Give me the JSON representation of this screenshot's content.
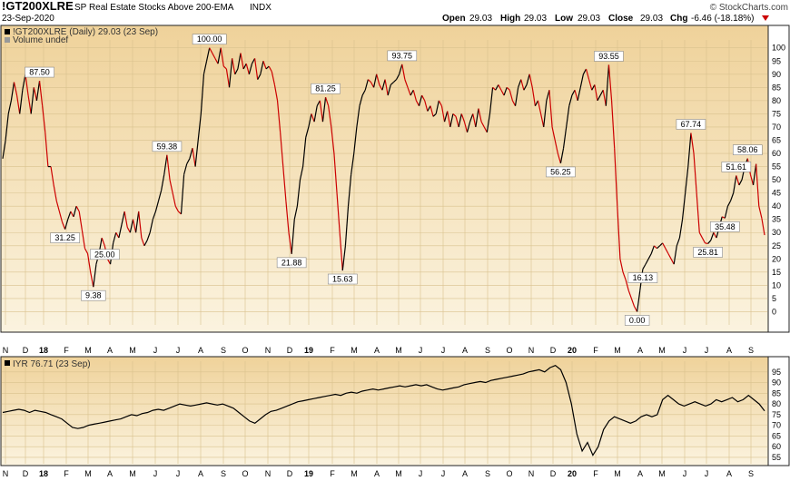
{
  "header": {
    "symbol": "!GT200XLRE",
    "description": "SP Real Estate Stocks Above 200-EMA",
    "exchange": "INDX",
    "date": "23-Sep-2020",
    "credit": "© StockCharts.com",
    "open_label": "Open",
    "open": "29.03",
    "high_label": "High",
    "high": "29.03",
    "low_label": "Low",
    "low": "29.03",
    "close_label": "Close",
    "close": "29.03",
    "chg_label": "Chg",
    "chg": "-6.46 (-18.18%)"
  },
  "colors": {
    "background": "#f3ddaa",
    "up": "#000000",
    "down": "#cc0000"
  },
  "chart_data": [
    {
      "type": "line",
      "legend_line": "!GT200XLRE (Daily) 29.03 (23 Sep)",
      "volume_note": "Volume undef",
      "ylim": [
        -5,
        103
      ],
      "yticks": [
        0,
        5,
        10,
        15,
        20,
        25,
        30,
        35,
        40,
        45,
        50,
        55,
        60,
        65,
        70,
        75,
        80,
        85,
        90,
        95,
        100
      ],
      "x_ticks": [
        "N",
        "D",
        "18",
        "F",
        "M",
        "A",
        "M",
        "J",
        "J",
        "A",
        "S",
        "O",
        "N",
        "D",
        "19",
        "F",
        "M",
        "A",
        "M",
        "J",
        "J",
        "A",
        "S",
        "O",
        "N",
        "D",
        "20",
        "F",
        "M",
        "A",
        "M",
        "J",
        "J",
        "A",
        "S"
      ],
      "annotations": [
        {
          "label": "87.50",
          "value": 87.5
        },
        {
          "label": "31.25",
          "value": 31.25
        },
        {
          "label": "9.38",
          "value": 9.38
        },
        {
          "label": "25.00",
          "value": 25.0
        },
        {
          "label": "59.38",
          "value": 59.38
        },
        {
          "label": "100.00",
          "value": 100
        },
        {
          "label": "21.88",
          "value": 21.88
        },
        {
          "label": "81.25",
          "value": 81.25
        },
        {
          "label": "15.63",
          "value": 15.63
        },
        {
          "label": "93.75",
          "value": 93.75
        },
        {
          "label": "56.25",
          "value": 56.25
        },
        {
          "label": "93.55",
          "value": 93.55
        },
        {
          "label": "0.00",
          "value": 0.0
        },
        {
          "label": "16.13",
          "value": 16.13
        },
        {
          "label": "67.74",
          "value": 67.74
        },
        {
          "label": "25.81",
          "value": 25.81
        },
        {
          "label": "51.61",
          "value": 51.61
        },
        {
          "label": "35.48",
          "value": 35.48
        },
        {
          "label": "58.06",
          "value": 58.06
        }
      ],
      "series": [
        {
          "values": [
            58,
            65,
            75,
            80,
            87,
            82,
            75,
            84,
            90,
            82,
            75,
            85,
            80,
            87.5,
            78,
            68,
            55,
            55,
            48,
            42,
            38,
            34,
            31.25,
            35,
            38,
            36,
            40,
            38,
            31,
            24,
            22,
            15,
            9.38,
            18,
            22,
            28,
            25,
            20,
            18,
            26,
            30,
            28,
            33,
            38,
            32,
            30,
            35,
            30,
            38,
            28,
            25,
            27,
            30,
            35,
            38,
            42,
            46,
            52,
            59.38,
            50,
            45,
            40,
            38,
            37,
            52,
            56,
            58,
            62,
            55,
            65,
            75,
            90,
            95,
            100,
            98,
            96,
            94,
            100,
            93,
            92,
            85,
            96,
            90,
            92,
            98,
            92,
            94,
            90,
            94,
            96,
            88,
            90,
            95,
            92,
            93,
            91,
            86,
            80,
            68,
            55,
            42,
            30,
            21.88,
            35,
            40,
            50,
            55,
            66,
            70,
            75,
            72,
            78,
            80,
            72,
            81.25,
            78,
            70,
            60,
            45,
            30,
            15.63,
            25,
            40,
            52,
            60,
            70,
            78,
            82,
            84,
            88,
            87,
            85,
            90,
            86,
            84,
            88,
            82,
            86,
            87,
            88,
            90,
            93.75,
            88,
            85,
            82,
            84,
            80,
            78,
            82,
            80,
            76,
            78,
            74,
            75,
            80,
            78,
            72,
            76,
            70,
            75,
            74,
            70,
            75,
            72,
            68,
            72,
            75,
            70,
            77,
            72,
            70,
            68,
            75,
            85,
            84,
            86,
            84,
            82,
            85,
            84,
            80,
            78,
            85,
            88,
            84,
            86,
            90,
            85,
            78,
            80,
            75,
            70,
            80,
            84,
            70,
            65,
            60,
            56.25,
            62,
            70,
            78,
            82,
            84,
            80,
            85,
            90,
            92,
            88,
            84,
            86,
            80,
            82,
            84,
            78,
            93.55,
            80,
            62,
            40,
            20,
            15,
            12,
            8,
            5,
            2,
            0.0,
            8,
            16.13,
            18,
            20,
            22,
            25,
            24,
            25,
            26,
            24,
            22,
            20,
            18,
            25,
            28,
            35,
            45,
            55,
            67.74,
            60,
            45,
            30,
            28,
            26,
            25.81,
            27,
            30,
            28,
            32,
            36,
            35.48,
            40,
            42,
            45,
            51.61,
            48,
            50,
            55,
            58.06,
            52,
            48,
            56,
            40,
            35.48,
            29.03
          ]
        }
      ]
    },
    {
      "type": "line",
      "legend_line": "IYR 76.71 (23 Sep)",
      "ylim": [
        52,
        100
      ],
      "yticks": [
        55,
        60,
        65,
        70,
        75,
        80,
        85,
        90,
        95
      ],
      "x_ticks": [
        "N",
        "D",
        "18",
        "F",
        "M",
        "A",
        "M",
        "J",
        "J",
        "A",
        "S",
        "O",
        "N",
        "D",
        "19",
        "F",
        "M",
        "A",
        "M",
        "J",
        "J",
        "A",
        "S",
        "O",
        "N",
        "D",
        "20",
        "F",
        "M",
        "A",
        "M",
        "J",
        "J",
        "A",
        "S"
      ],
      "series": [
        {
          "values": [
            76,
            76.5,
            77,
            77.5,
            77,
            76,
            77,
            76.5,
            76,
            75,
            74,
            73,
            71,
            69,
            68.5,
            69,
            70,
            70.5,
            71,
            71.5,
            72,
            72.5,
            73,
            74,
            75,
            74.5,
            75.5,
            76,
            77,
            77.5,
            77,
            78,
            79,
            80,
            79.5,
            79,
            79.5,
            80,
            80.5,
            80,
            79.5,
            80,
            79,
            78,
            76,
            74,
            72,
            71,
            73,
            75,
            76.5,
            77,
            78,
            79,
            80,
            81,
            81.5,
            82,
            82.5,
            83,
            83.5,
            84,
            84.5,
            84,
            85,
            85.5,
            85,
            86,
            86.5,
            87,
            86.5,
            87,
            87.5,
            88,
            88.5,
            88,
            88.5,
            89,
            88.5,
            89,
            88,
            87,
            86.5,
            87,
            87.5,
            88,
            89,
            89.5,
            90,
            90.5,
            90,
            91,
            91.5,
            92,
            92.5,
            93,
            93.5,
            94,
            95,
            95.5,
            96,
            95,
            97,
            98,
            96,
            90,
            80,
            66,
            58,
            62,
            56,
            60,
            68,
            72,
            74,
            73,
            72,
            71,
            72,
            74,
            75,
            74,
            75,
            82,
            84,
            82,
            80,
            79,
            80,
            81,
            80,
            79,
            80,
            82,
            81,
            82,
            83,
            81,
            82,
            84,
            82,
            80,
            76.71
          ]
        }
      ]
    }
  ]
}
